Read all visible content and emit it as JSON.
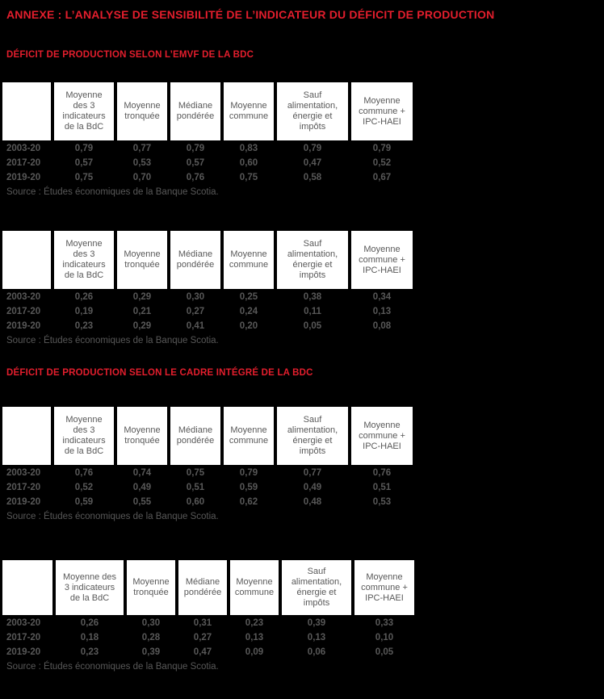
{
  "page": {
    "title": "ANNEXE : L’ANALYSE DE SENSIBILITÉ DE L’INDICATEUR DU DÉFICIT DE PRODUCTION",
    "colors": {
      "background": "#000000",
      "heading_red": "#e31e2d",
      "body_text_gray": "#585858",
      "header_cell_background": "#ffffff"
    }
  },
  "sections": [
    {
      "heading": "DÉFICIT DE PRODUCTION SELON L’EMVF DE LA BDC",
      "tables": [
        {
          "columns": [
            "",
            "Moyenne des 3 indicateurs de la BdC",
            "Moyenne tronquée",
            "Médiane pondérée",
            "Moyenne commune",
            "Sauf alimentation, énergie et impôts",
            "Moyenne commune + IPC-HAEI"
          ],
          "rows": [
            {
              "label": "2003-20",
              "values": [
                "0,79",
                "0,77",
                "0,79",
                "0,83",
                "0,79",
                "0,79"
              ]
            },
            {
              "label": "2017-20",
              "values": [
                "0,57",
                "0,53",
                "0,57",
                "0,60",
                "0,47",
                "0,52"
              ]
            },
            {
              "label": "2019-20",
              "values": [
                "0,75",
                "0,70",
                "0,76",
                "0,75",
                "0,58",
                "0,67"
              ]
            }
          ],
          "source": "Source : Études économiques de la Banque Scotia."
        },
        {
          "columns": [
            "",
            "Moyenne des 3 indicateurs de la BdC",
            "Moyenne tronquée",
            "Médiane pondérée",
            "Moyenne commune",
            "Sauf alimentation, énergie et impôts",
            "Moyenne commune + IPC-HAEI"
          ],
          "rows": [
            {
              "label": "2003-20",
              "values": [
                "0,26",
                "0,29",
                "0,30",
                "0,25",
                "0,38",
                "0,34"
              ]
            },
            {
              "label": "2017-20",
              "values": [
                "0,19",
                "0,21",
                "0,27",
                "0,24",
                "0,11",
                "0,13"
              ]
            },
            {
              "label": "2019-20",
              "values": [
                "0,23",
                "0,29",
                "0,41",
                "0,20",
                "0,05",
                "0,08"
              ]
            }
          ],
          "source": "Source : Études économiques de la Banque Scotia."
        }
      ]
    },
    {
      "heading": "DÉFICIT DE PRODUCTION SELON LE CADRE INTÉGRÉ DE LA BDC",
      "tables": [
        {
          "columns": [
            "",
            "Moyenne des 3 indicateurs de la BdC",
            "Moyenne tronquée",
            "Médiane pondérée",
            "Moyenne commune",
            "Sauf alimentation, énergie et impôts",
            "Moyenne commune + IPC-HAEI"
          ],
          "rows": [
            {
              "label": "2003-20",
              "values": [
                "0,76",
                "0,74",
                "0,75",
                "0,79",
                "0,77",
                "0,76"
              ]
            },
            {
              "label": "2017-20",
              "values": [
                "0,52",
                "0,49",
                "0,51",
                "0,59",
                "0,49",
                "0,51"
              ]
            },
            {
              "label": "2019-20",
              "values": [
                "0,59",
                "0,55",
                "0,60",
                "0,62",
                "0,48",
                "0,53"
              ]
            }
          ],
          "source": "Source : Études économiques de la Banque Scotia."
        },
        {
          "columns": [
            "",
            "Moyenne des 3 indicateurs de la BdC",
            "Moyenne tronquée",
            "Médiane pondérée",
            "Moyenne commune",
            "Sauf alimentation, énergie et impôts",
            "Moyenne commune + IPC-HAEI"
          ],
          "rows": [
            {
              "label": "2003-20",
              "values": [
                "0,26",
                "0,30",
                "0,31",
                "0,23",
                "0,39",
                "0,33"
              ]
            },
            {
              "label": "2017-20",
              "values": [
                "0,18",
                "0,28",
                "0,27",
                "0,13",
                "0,13",
                "0,10"
              ]
            },
            {
              "label": "2019-20",
              "values": [
                "0,23",
                "0,39",
                "0,47",
                "0,09",
                "0,06",
                "0,05"
              ]
            }
          ],
          "source": "Source : Études économiques de la Banque Scotia."
        }
      ]
    }
  ]
}
